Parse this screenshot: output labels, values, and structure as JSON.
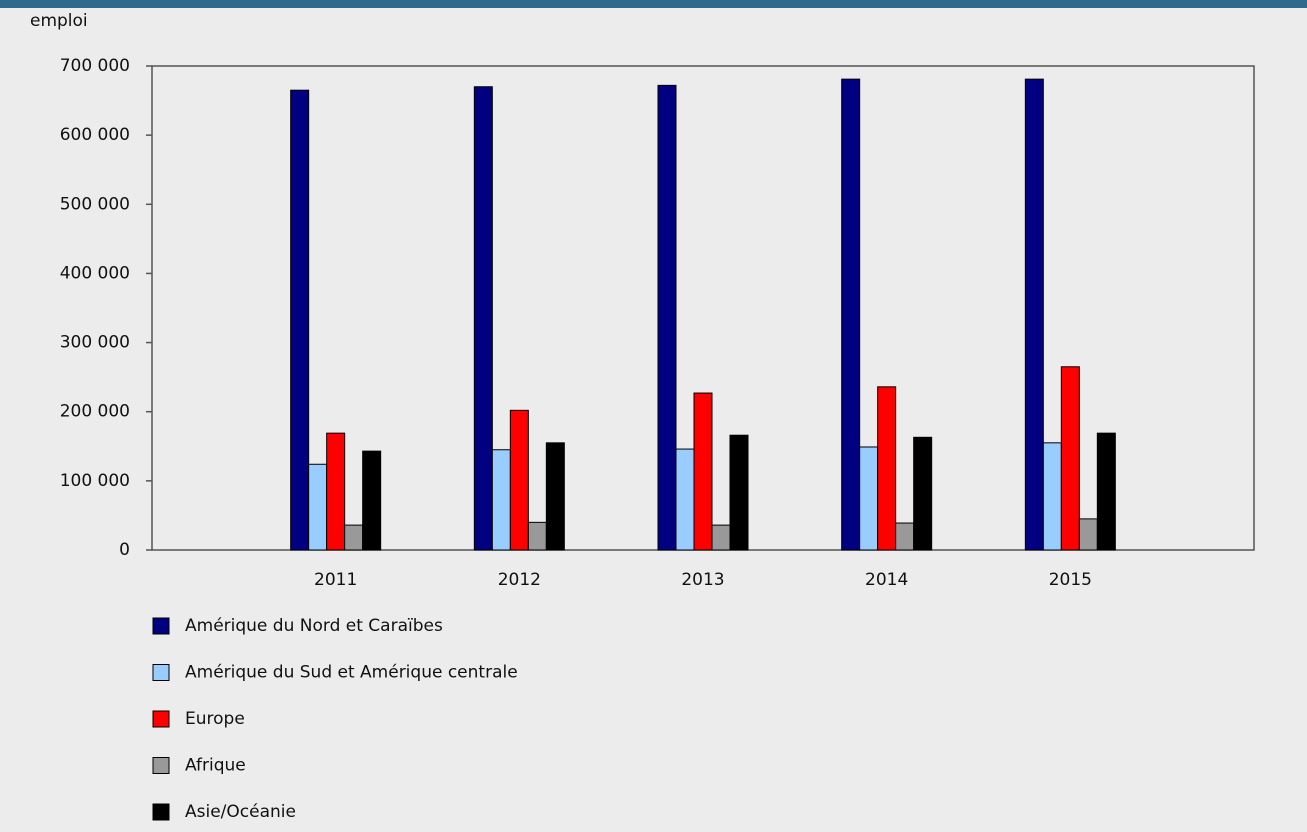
{
  "chart_data": {
    "type": "bar",
    "y_label": "emploi",
    "categories": [
      "2011",
      "2012",
      "2013",
      "2014",
      "2015"
    ],
    "series": [
      {
        "name": "Amérique du Nord et Caraïbes",
        "color": "#000080",
        "values": [
          665000,
          670000,
          672000,
          681000,
          681000
        ]
      },
      {
        "name": "Amérique du Sud et Amérique centrale",
        "color": "#99ccff",
        "values": [
          124000,
          145000,
          146000,
          149000,
          155000
        ]
      },
      {
        "name": "Europe",
        "color": "#ff0000",
        "values": [
          169000,
          202000,
          227000,
          236000,
          265000
        ]
      },
      {
        "name": "Afrique",
        "color": "#999999",
        "values": [
          36000,
          40000,
          36000,
          39000,
          45000
        ]
      },
      {
        "name": "Asie/Océanie",
        "color": "#000000",
        "values": [
          143000,
          155000,
          166000,
          163000,
          169000
        ]
      }
    ],
    "ylim": [
      0,
      700000
    ],
    "yticks": [
      0,
      {
        "value": 100000,
        "label": "100 000"
      },
      {
        "value": 200000,
        "label": "200 000"
      },
      {
        "value": 300000,
        "label": "300 000"
      },
      {
        "value": 400000,
        "label": "400 000"
      },
      {
        "value": 500000,
        "label": "500 000"
      },
      {
        "value": 600000,
        "label": "600 000"
      },
      {
        "value": 700000,
        "label": "700 000"
      }
    ],
    "legend": "bottom"
  }
}
